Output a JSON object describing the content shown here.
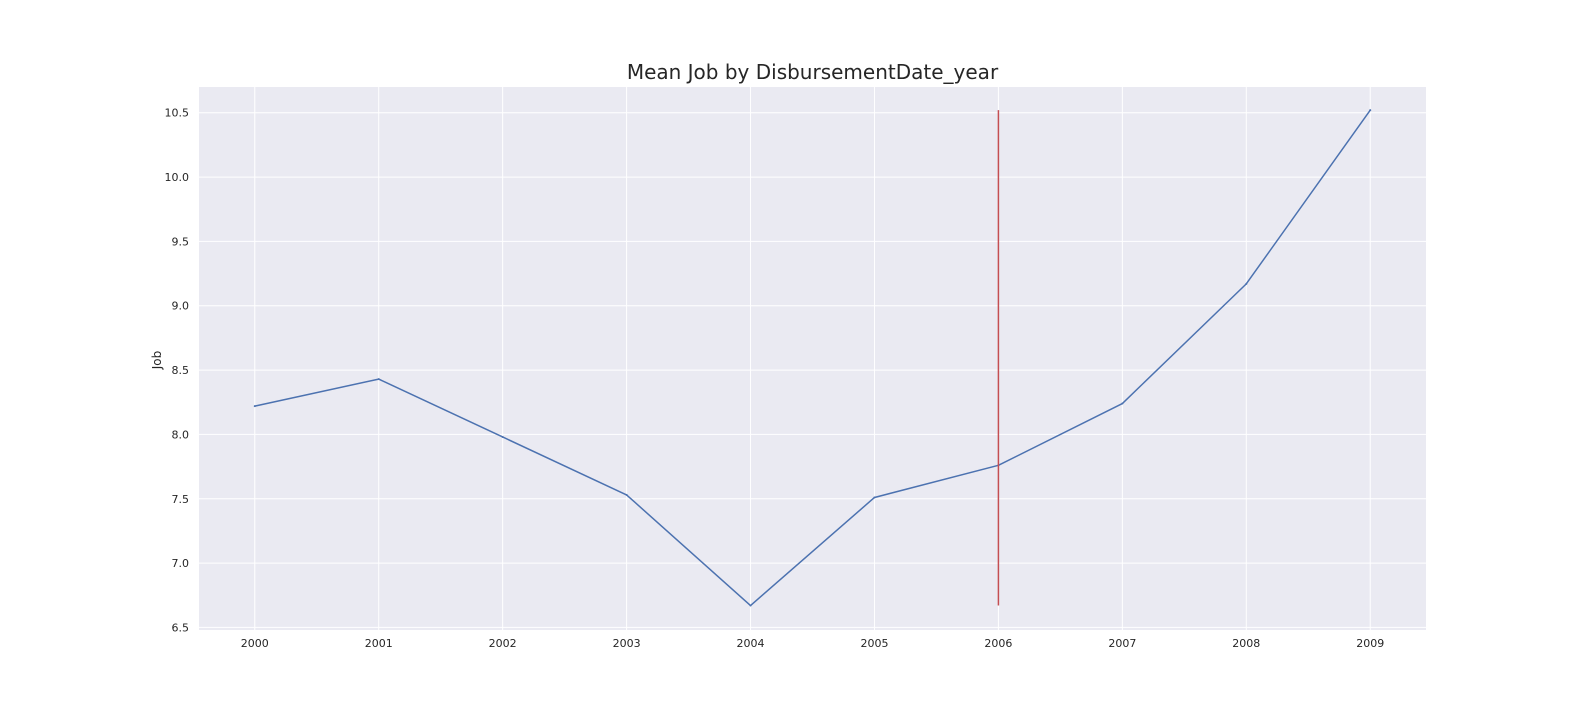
{
  "chart_data": {
    "type": "line",
    "title": "Mean Job by DisbursementDate_year",
    "xlabel": "",
    "ylabel": "Job",
    "x": [
      2000,
      2001,
      2002,
      2003,
      2004,
      2005,
      2006,
      2007,
      2008,
      2009
    ],
    "series": [
      {
        "values": [
          8.22,
          8.43,
          7.98,
          7.53,
          6.67,
          7.51,
          7.76,
          8.24,
          9.17,
          10.52
        ]
      }
    ],
    "vline": {
      "x": 2006,
      "ymin": 6.67,
      "ymax": 10.52
    },
    "yticks": [
      "6.5",
      "7.0",
      "7.5",
      "8.0",
      "8.5",
      "9.0",
      "9.5",
      "10.0",
      "10.5"
    ],
    "xticks": [
      "2000",
      "2001",
      "2002",
      "2003",
      "2004",
      "2005",
      "2006",
      "2007",
      "2008",
      "2009"
    ],
    "xlim": [
      1999.55,
      2009.45
    ],
    "ylim": [
      6.48,
      10.7
    ],
    "grid": true,
    "colors": {
      "line": "#4c72b0",
      "vline": "#c44e52",
      "plot_bg": "#eaeaf2",
      "grid": "#ffffff"
    }
  }
}
